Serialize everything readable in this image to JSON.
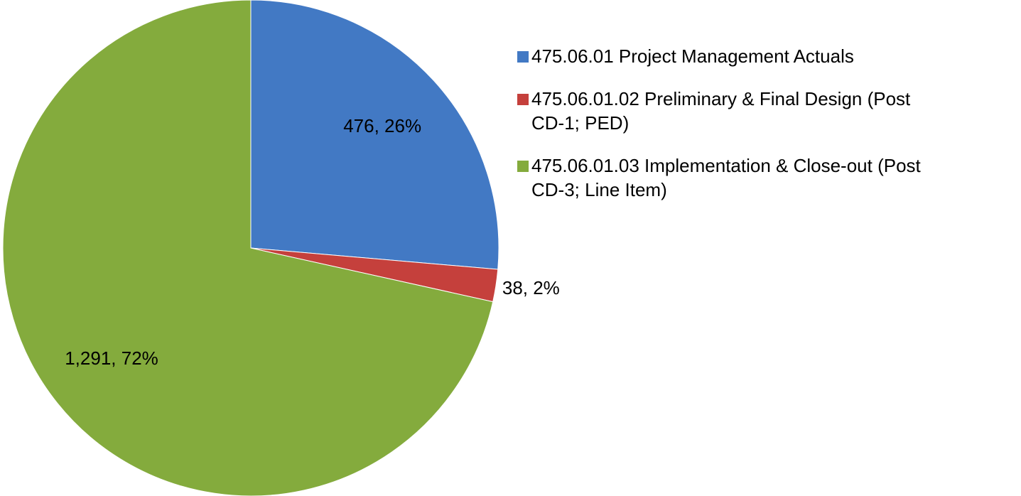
{
  "chart_data": {
    "type": "pie",
    "categories": [
      "475.06.01 Project Management Actuals",
      "475.06.01.02 Preliminary & Final Design (Post CD-1; PED)",
      "475.06.01.03 Implementation & Close-out (Post CD-3; Line Item)"
    ],
    "values": [
      476,
      38,
      1291
    ],
    "value_labels": [
      "476, 26%",
      "38, 2%",
      "1,291, 72%"
    ],
    "colors": [
      "#4279c4",
      "#c5403c",
      "#84ab3d"
    ],
    "legend": "right"
  }
}
